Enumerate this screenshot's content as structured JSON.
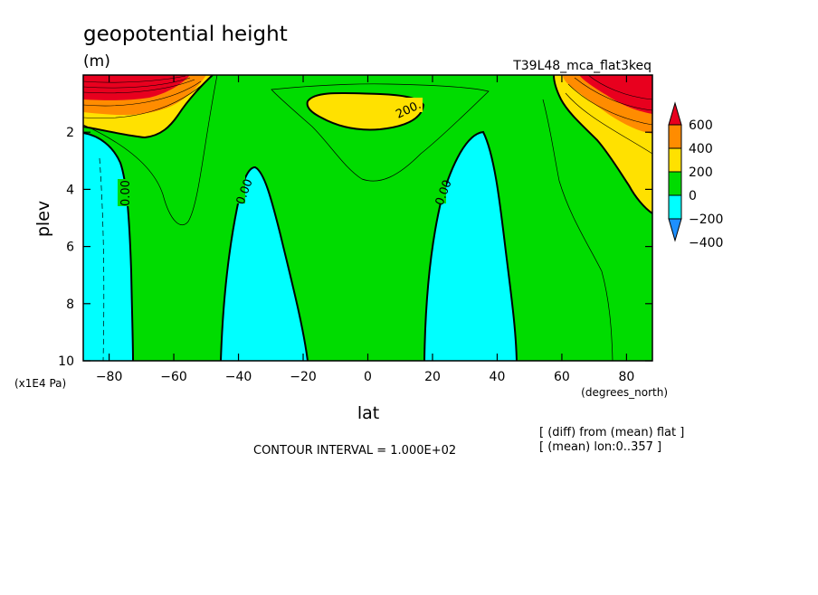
{
  "chart_data": {
    "type": "contour",
    "title": "geopotential height",
    "units": "(m)",
    "run_label": "T39L48_mca_flat3keq",
    "xlabel": "lat",
    "xunits": "(degrees_north)",
    "ylabel": "plev",
    "yunits": "(x1E4 Pa)",
    "xlim": [
      -88,
      88
    ],
    "ylim": [
      10,
      0
    ],
    "xticks": [
      -80,
      -60,
      -40,
      -20,
      0,
      20,
      40,
      60,
      80
    ],
    "xtick_labels": [
      "−80",
      "−60",
      "−40",
      "−20",
      "0",
      "20",
      "40",
      "60",
      "80"
    ],
    "yticks": [
      2,
      4,
      6,
      8,
      10
    ],
    "ytick_labels": [
      "2",
      "4",
      "6",
      "8",
      "10"
    ],
    "contour_interval_text": "CONTOUR INTERVAL = 1.000E+02",
    "contour_labels": [
      "0.00",
      "0.00",
      "0.00",
      "0.00",
      "200."
    ],
    "colorbar": {
      "levels": [
        "600",
        "400",
        "200",
        "0",
        "−200",
        "−400"
      ],
      "colors": [
        "#e8001e",
        "#ff8c00",
        "#ffe100",
        "#00dc00",
        "#00ffff",
        "#1e90ff"
      ]
    },
    "notes": [
      "[ (diff) from (mean) flat ]",
      "[ (mean) lon:0..357 ]"
    ]
  }
}
